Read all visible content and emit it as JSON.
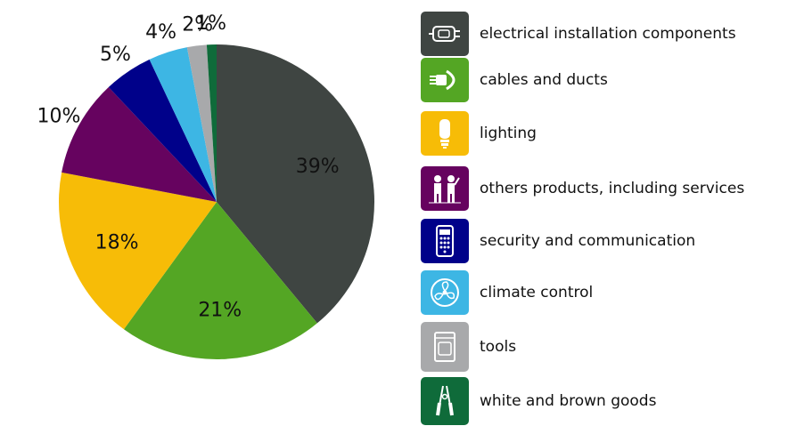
{
  "chart_data": {
    "type": "pie",
    "title": "",
    "start_angle_deg": 0,
    "direction": "clockwise",
    "slices": [
      {
        "label": "electrical installation components",
        "value": 39,
        "display": "39%",
        "color": "#3f4542",
        "icon": "motor-icon"
      },
      {
        "label": "cables and ducts",
        "value": 21,
        "display": "21%",
        "color": "#54a624",
        "icon": "cable-icon"
      },
      {
        "label": "lighting",
        "value": 18,
        "display": "18%",
        "color": "#f7bc07",
        "icon": "light-bulb-icon"
      },
      {
        "label": "others products, including services",
        "value": 10,
        "display": "10%",
        "color": "#66035f",
        "icon": "people-icon"
      },
      {
        "label": "security and communication",
        "value": 5,
        "display": "5%",
        "color": "#00018a",
        "icon": "keypad-icon"
      },
      {
        "label": "climate control",
        "value": 4,
        "display": "4%",
        "color": "#3db6e4",
        "icon": "fan-icon"
      },
      {
        "label": "tools",
        "value": 2,
        "display": "2%",
        "color": "#a8a9ab",
        "icon": "appliance-icon"
      },
      {
        "label": "white and brown goods",
        "value": 1,
        "display": "1%",
        "color": "#0f6b3a",
        "icon": "pliers-icon"
      }
    ],
    "legend": "right"
  }
}
